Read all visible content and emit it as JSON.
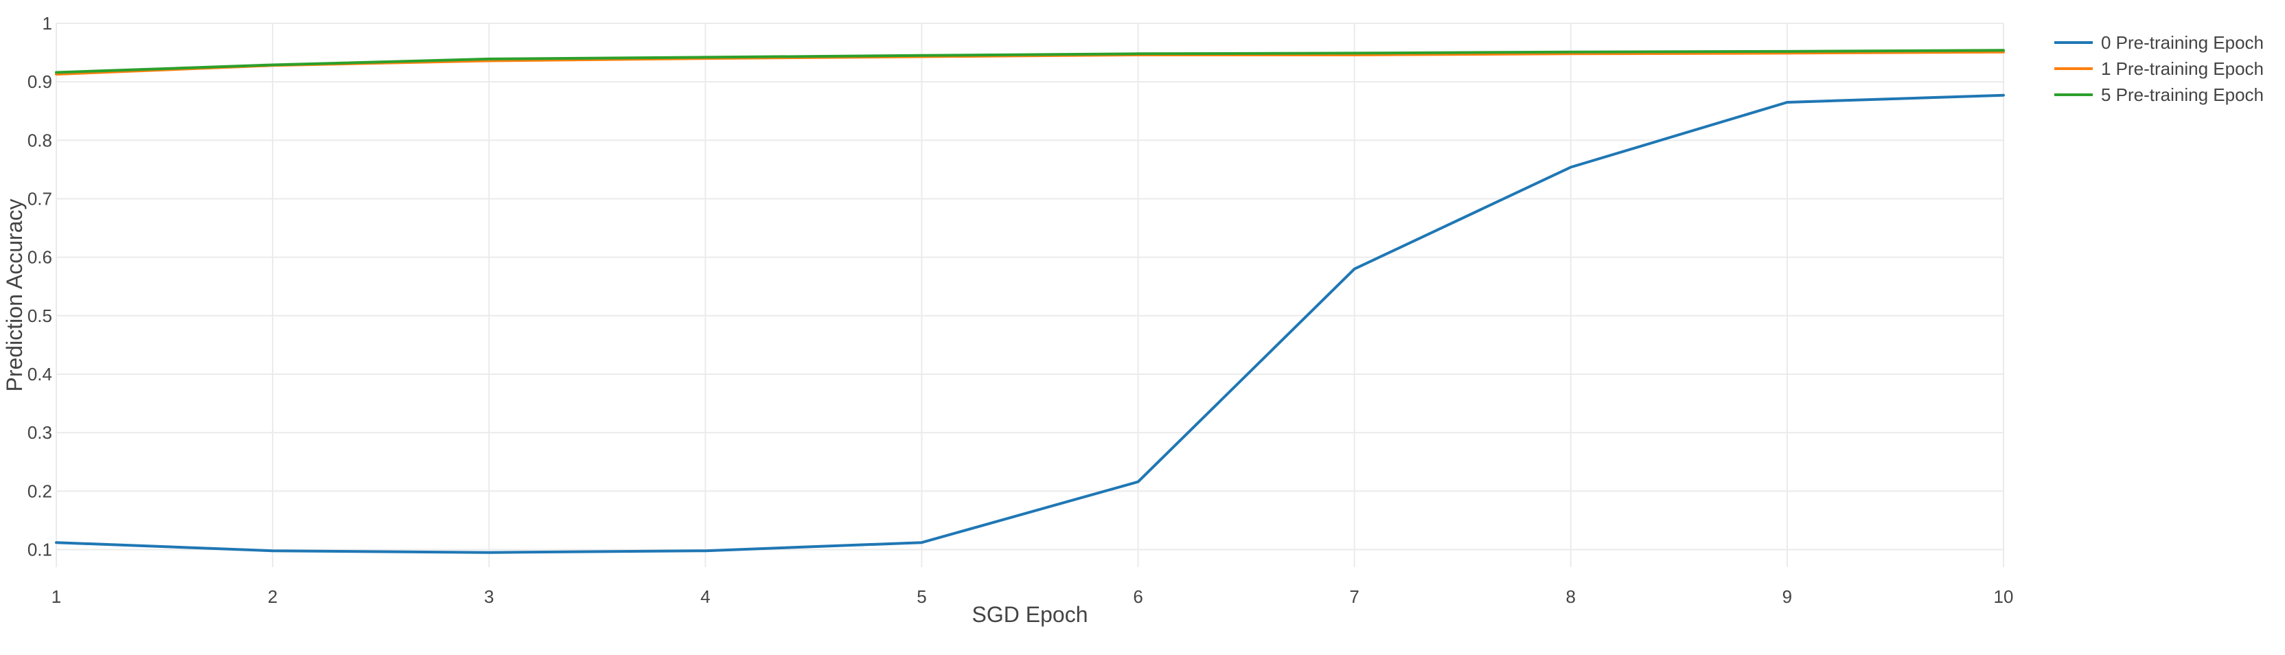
{
  "chart_data": {
    "type": "line",
    "title": "",
    "xlabel": "SGD Epoch",
    "ylabel": "Prediction Accuracy",
    "x": [
      1,
      2,
      3,
      4,
      5,
      6,
      7,
      8,
      9,
      10
    ],
    "xlim": [
      1,
      10
    ],
    "ylim": [
      0.07,
      1.0
    ],
    "x_ticks": [
      "1",
      "2",
      "3",
      "4",
      "5",
      "6",
      "7",
      "8",
      "9",
      "10"
    ],
    "y_ticks": [
      "0.1",
      "0.2",
      "0.3",
      "0.4",
      "0.5",
      "0.6",
      "0.7",
      "0.8",
      "0.9",
      "1"
    ],
    "grid": true,
    "legend_position": "top-right",
    "series": [
      {
        "name": "0 Pre-training Epoch",
        "color": "#1f77b4",
        "values": [
          0.112,
          0.098,
          0.095,
          0.098,
          0.112,
          0.216,
          0.58,
          0.754,
          0.865,
          0.877
        ]
      },
      {
        "name": "1 Pre-training Epoch",
        "color": "#ff7f0e",
        "values": [
          0.913,
          0.928,
          0.936,
          0.94,
          0.943,
          0.946,
          0.946,
          0.948,
          0.949,
          0.951
        ]
      },
      {
        "name": "5 Pre-training Epoch",
        "color": "#2ca02c",
        "values": [
          0.916,
          0.929,
          0.939,
          0.942,
          0.945,
          0.948,
          0.949,
          0.951,
          0.952,
          0.954
        ]
      }
    ]
  }
}
